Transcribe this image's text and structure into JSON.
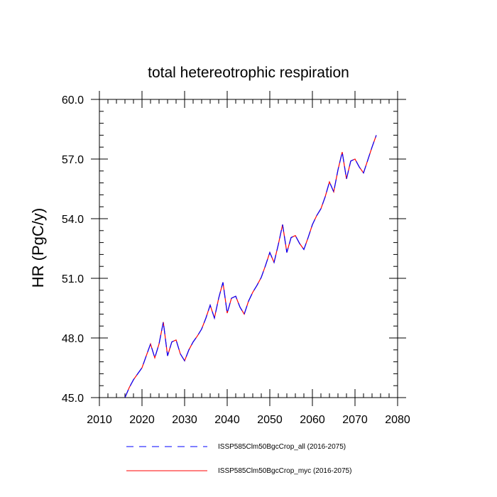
{
  "chart_data": {
    "type": "line",
    "title": "total hetereotrophic respiration",
    "xlabel": "",
    "ylabel": "HR  (PgC/y)",
    "xlim": [
      2010,
      2080
    ],
    "ylim": [
      45.0,
      60.0
    ],
    "xticks": [
      2010,
      2020,
      2030,
      2040,
      2050,
      2060,
      2070,
      2080
    ],
    "xtick_labels": [
      "2010",
      "2020",
      "2030",
      "2040",
      "2050",
      "2060",
      "2070",
      "2080"
    ],
    "yticks": [
      45.0,
      48.0,
      51.0,
      54.0,
      57.0,
      60.0
    ],
    "ytick_labels": [
      "45.0",
      "48.0",
      "51.0",
      "54.0",
      "57.0",
      "60.0"
    ],
    "grid": false,
    "legend_position": "bottom",
    "x": [
      2016,
      2017,
      2018,
      2019,
      2020,
      2021,
      2022,
      2023,
      2024,
      2025,
      2026,
      2027,
      2028,
      2029,
      2030,
      2031,
      2032,
      2033,
      2034,
      2035,
      2036,
      2037,
      2038,
      2039,
      2040,
      2041,
      2042,
      2043,
      2044,
      2045,
      2046,
      2047,
      2048,
      2049,
      2050,
      2051,
      2052,
      2053,
      2054,
      2055,
      2056,
      2057,
      2058,
      2059,
      2060,
      2061,
      2062,
      2063,
      2064,
      2065,
      2066,
      2067,
      2068,
      2069,
      2070,
      2071,
      2072,
      2073,
      2074,
      2075
    ],
    "series": [
      {
        "name": "ISSP585Clm50BgcCrop_all (2016-2075)",
        "color": "#0000ff",
        "dash": "dashed",
        "values": [
          45.0,
          45.5,
          45.9,
          46.2,
          46.5,
          47.1,
          47.7,
          47.0,
          47.7,
          48.8,
          47.1,
          47.8,
          47.9,
          47.2,
          46.85,
          47.4,
          47.8,
          48.1,
          48.45,
          49.0,
          49.65,
          49.0,
          50.0,
          50.8,
          49.25,
          50.0,
          50.1,
          49.55,
          49.2,
          49.85,
          50.3,
          50.65,
          51.05,
          51.65,
          52.3,
          51.8,
          52.7,
          53.7,
          52.3,
          53.05,
          53.15,
          52.75,
          52.45,
          53.05,
          53.7,
          54.15,
          54.5,
          55.1,
          55.85,
          55.35,
          56.45,
          57.35,
          56.0,
          56.9,
          57.0,
          56.6,
          56.3,
          56.95,
          57.6,
          58.2
        ]
      },
      {
        "name": "ISSP585Clm50BgcCrop_myc (2016-2075)",
        "color": "#ff0000",
        "dash": "solid",
        "values": [
          45.0,
          45.5,
          45.9,
          46.2,
          46.5,
          47.1,
          47.7,
          47.0,
          47.7,
          48.8,
          47.1,
          47.8,
          47.9,
          47.2,
          46.85,
          47.4,
          47.8,
          48.1,
          48.45,
          49.0,
          49.65,
          49.0,
          50.0,
          50.8,
          49.25,
          50.0,
          50.1,
          49.55,
          49.2,
          49.85,
          50.3,
          50.65,
          51.05,
          51.65,
          52.3,
          51.8,
          52.7,
          53.7,
          52.3,
          53.05,
          53.15,
          52.75,
          52.45,
          53.05,
          53.7,
          54.15,
          54.5,
          55.1,
          55.85,
          55.35,
          56.45,
          57.35,
          56.0,
          56.9,
          57.0,
          56.6,
          56.3,
          56.95,
          57.6,
          58.2
        ]
      }
    ]
  }
}
